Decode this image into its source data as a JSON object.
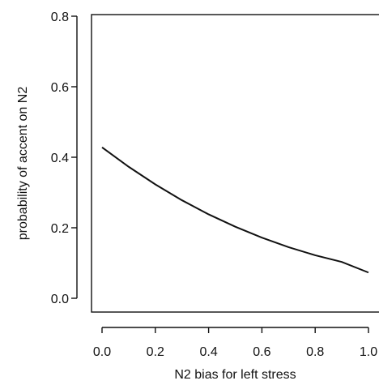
{
  "chart_data": {
    "type": "line",
    "title": "",
    "xlabel": "N2 bias for left stress",
    "ylabel": "probability of accent on N2",
    "xlim": [
      0.0,
      1.0
    ],
    "ylim": [
      0.0,
      0.8
    ],
    "x_ticks": [
      0.0,
      0.2,
      0.4,
      0.6,
      0.8,
      1.0
    ],
    "x_tick_labels": [
      "0.0",
      "0.2",
      "0.4",
      "0.6",
      "0.8",
      "1.0"
    ],
    "y_ticks": [
      0.0,
      0.2,
      0.4,
      0.6,
      0.8
    ],
    "y_tick_labels": [
      "0.0",
      "0.2",
      "0.4",
      "0.6",
      "0.8"
    ],
    "grid": false,
    "series": [
      {
        "x": [
          0.0,
          0.1,
          0.2,
          0.3,
          0.4,
          0.5,
          0.6,
          0.7,
          0.8,
          0.9,
          1.0
        ],
        "y": [
          0.428,
          0.373,
          0.323,
          0.278,
          0.238,
          0.203,
          0.172,
          0.145,
          0.122,
          0.103,
          0.073
        ]
      }
    ]
  }
}
